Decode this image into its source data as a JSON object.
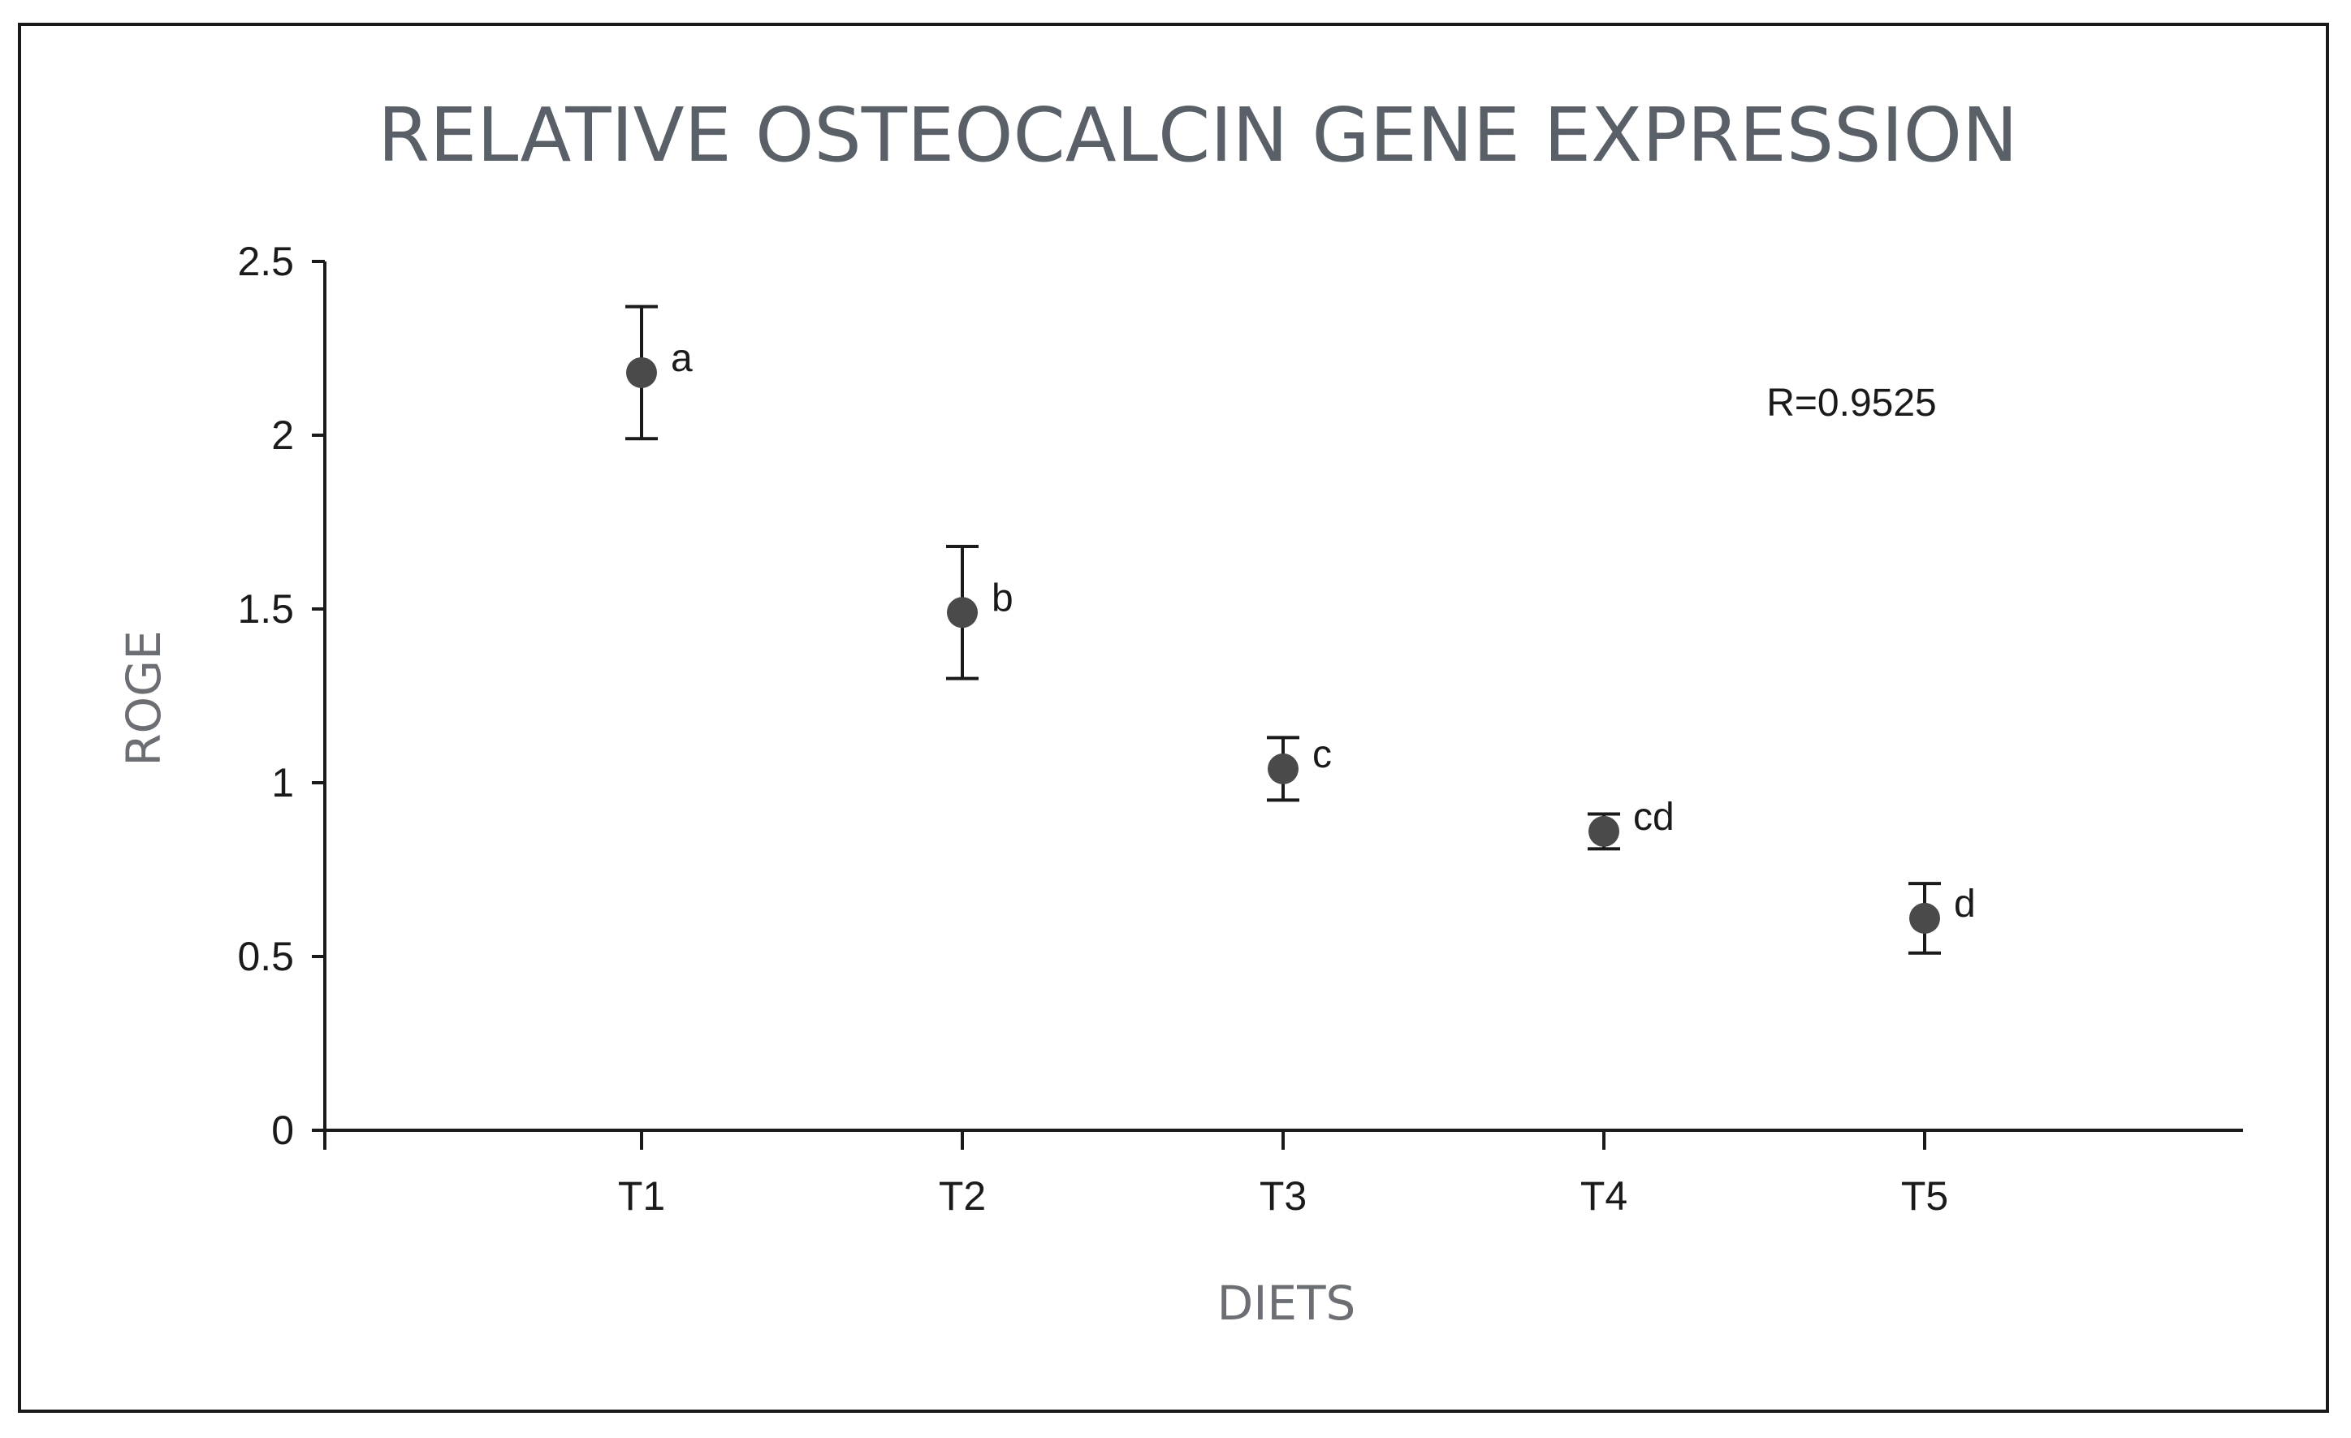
{
  "chart_data": {
    "type": "scatter",
    "title": "RELATIVE OSTEOCALCIN GENE EXPRESSION",
    "xlabel": "DIETS",
    "ylabel": "ROGE",
    "categories": [
      "T1",
      "T2",
      "T3",
      "T4",
      "T5"
    ],
    "values": [
      2.18,
      1.49,
      1.04,
      0.86,
      0.61
    ],
    "errors": [
      0.19,
      0.19,
      0.09,
      0.05,
      0.1
    ],
    "point_labels": [
      "a",
      "b",
      "c",
      "cd",
      "d"
    ],
    "yticks": [
      0,
      0.5,
      1,
      1.5,
      2,
      2.5
    ],
    "ytick_labels": [
      "0",
      "0.5",
      "1",
      "1.5",
      "2",
      "2.5"
    ],
    "ylim": [
      0,
      2.5
    ],
    "annotation": "R=0.9525",
    "grid": false,
    "marker_color": "#4a4a4a"
  }
}
